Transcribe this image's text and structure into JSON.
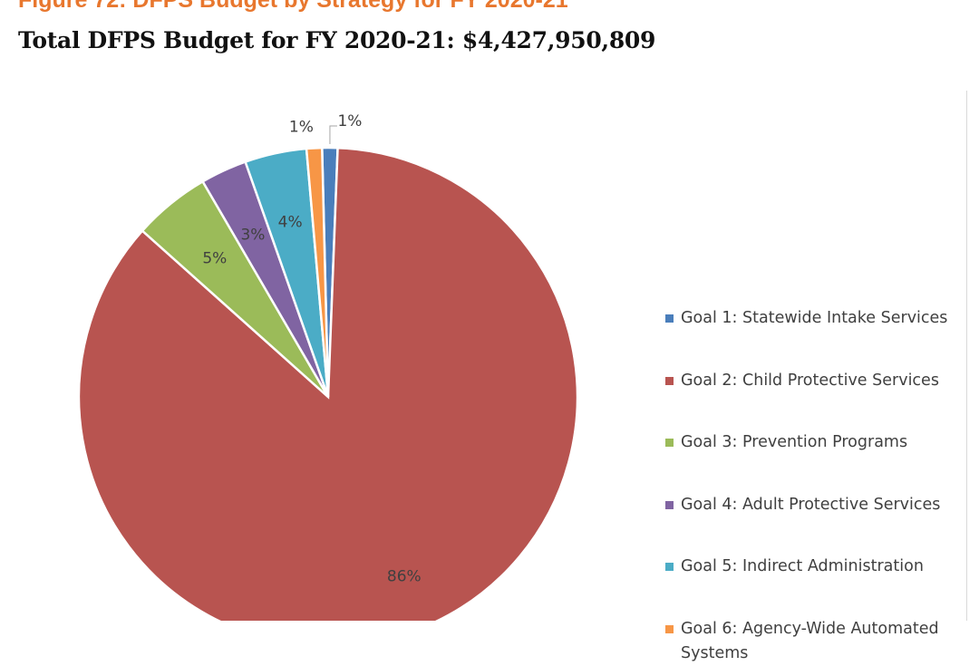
{
  "figure_caption": "Figure 72: DFPS Budget by Strategy for FY 2020-21",
  "title": "Total DFPS Budget for FY 2020-21: $4,427,950,809",
  "chart_data": {
    "type": "pie",
    "title": "Total DFPS Budget for FY 2020-21: $4,427,950,809",
    "legend_position": "right",
    "slices": [
      {
        "label": "Goal 1: Statewide Intake Services",
        "value": 1,
        "display": "1%",
        "color": "#4a7ebb"
      },
      {
        "label": "Goal 2: Child Protective Services",
        "value": 86,
        "display": "86%",
        "color": "#b85450"
      },
      {
        "label": "Goal 3: Prevention Programs",
        "value": 5,
        "display": "5%",
        "color": "#9bbb59"
      },
      {
        "label": "Goal 4: Adult Protective Services",
        "value": 3,
        "display": "3%",
        "color": "#8064a2"
      },
      {
        "label": "Goal 5: Indirect Administration",
        "value": 4,
        "display": "4%",
        "color": "#4bacc6"
      },
      {
        "label": "Goal 6: Agency-Wide Automated Systems",
        "value": 1,
        "display": "1%",
        "color": "#f79646"
      }
    ]
  }
}
